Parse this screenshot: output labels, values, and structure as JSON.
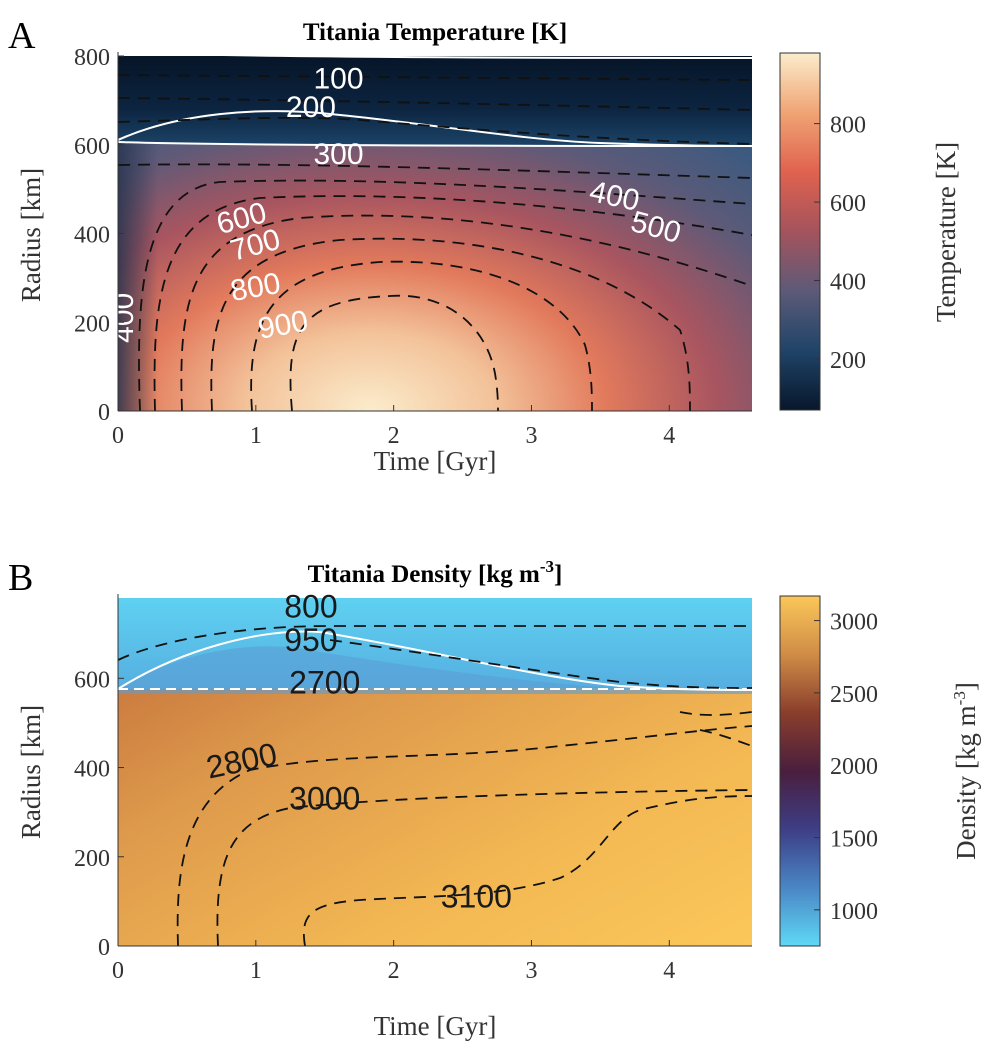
{
  "chart_data": [
    {
      "panel_letter": "A",
      "type": "heatmap",
      "title": "Titania Temperature [K]",
      "xlabel": "Time [Gyr]",
      "ylabel": "Radius [km]",
      "xlim": [
        0,
        4.6
      ],
      "ylim": [
        0,
        800
      ],
      "xticks": [
        "0",
        "1",
        "2",
        "3",
        "4"
      ],
      "yticks": [
        "0",
        "200",
        "400",
        "600",
        "800"
      ],
      "colorbar": {
        "label": "Temperature [K]",
        "range": [
          70,
          980
        ],
        "ticks": [
          "200",
          "400",
          "600",
          "800"
        ],
        "colors": [
          "#08172b",
          "#1f4468",
          "#5d5a78",
          "#a4535c",
          "#e0624f",
          "#f0a474",
          "#fbeccc"
        ]
      },
      "contour_labels": [
        {
          "text": "100",
          "x": 1.6,
          "y": 745
        },
        {
          "text": "200",
          "x": 1.4,
          "y": 680
        },
        {
          "text": "300",
          "x": 1.6,
          "y": 575
        },
        {
          "text": "400",
          "x": 3.6,
          "y": 480
        },
        {
          "text": "500",
          "x": 3.9,
          "y": 410
        },
        {
          "text": "600",
          "x": 0.9,
          "y": 430
        },
        {
          "text": "700",
          "x": 1.0,
          "y": 370
        },
        {
          "text": "800",
          "x": 1.0,
          "y": 275
        },
        {
          "text": "900",
          "x": 1.2,
          "y": 190
        },
        {
          "text": "400",
          "x": 0.05,
          "y": 210
        }
      ]
    },
    {
      "panel_letter": "B",
      "type": "heatmap",
      "title": "Titania Density [kg m",
      "title_sup": "-3",
      "title_end": "]",
      "xlabel": "Time [Gyr]",
      "ylabel": "Radius [km]",
      "xlim": [
        0,
        4.6
      ],
      "ylim": [
        0,
        800
      ],
      "xticks": [
        "0",
        "1",
        "2",
        "3",
        "4"
      ],
      "yticks": [
        "0",
        "200",
        "400",
        "600"
      ],
      "colorbar": {
        "label": "Density [kg m",
        "label_sup": "-3",
        "label_end": "]",
        "range": [
          750,
          3170
        ],
        "ticks": [
          "1000",
          "1500",
          "2000",
          "2500",
          "3000"
        ],
        "colors": [
          "#5fd8f6",
          "#4a86c4",
          "#3d3e86",
          "#4a1e3e",
          "#8a3e2c",
          "#d08c46",
          "#fbc75a"
        ]
      },
      "contour_labels": [
        {
          "text": "800",
          "x": 1.4,
          "y": 755
        },
        {
          "text": "950",
          "x": 1.4,
          "y": 680
        },
        {
          "text": "2700",
          "x": 1.5,
          "y": 585
        },
        {
          "text": "2800",
          "x": 0.9,
          "y": 410
        },
        {
          "text": "3000",
          "x": 1.5,
          "y": 325
        },
        {
          "text": "3100",
          "x": 2.6,
          "y": 105
        }
      ]
    }
  ]
}
